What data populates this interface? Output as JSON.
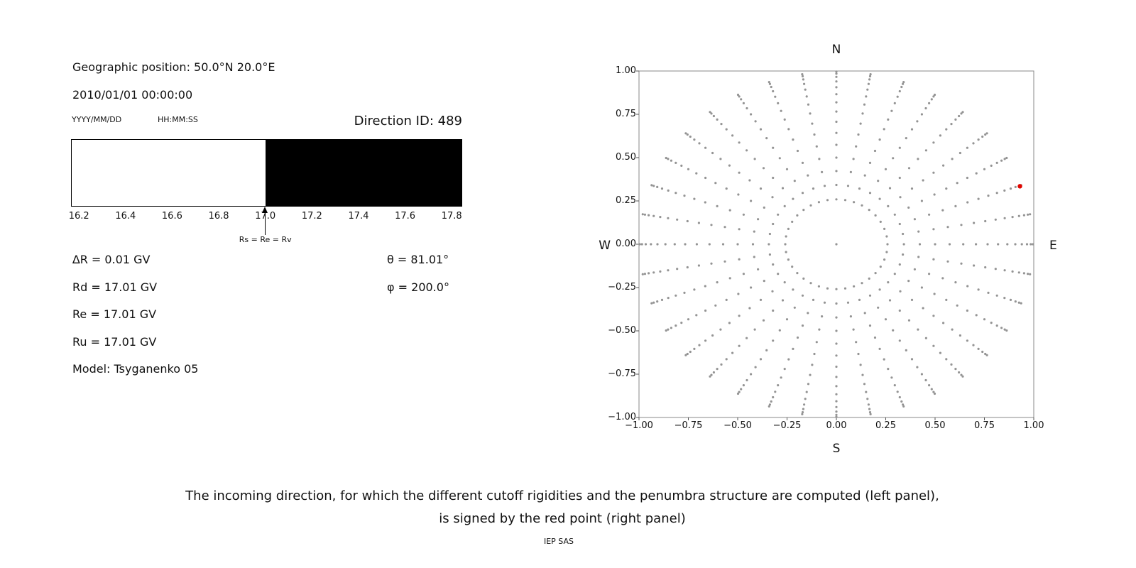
{
  "page": {
    "background": "#ffffff",
    "caption_line1": "The incoming direction, for which the different cutoff rigidities and the penumbra structure are computed (left panel),",
    "caption_line2": "is signed by the red point (right panel)",
    "credit": "IEP SAS"
  },
  "left_panel": {
    "geographic_position": "Geographic position: 50.0°N 20.0°E",
    "datetime": "2010/01/01 00:00:00",
    "date_format": "YYYY/MM/DD",
    "time_format": "HH:MM:SS",
    "direction_id": "Direction ID: 489",
    "parameters": [
      "∆R = 0.01 GV",
      "Rd = 17.01 GV",
      "Re = 17.01 GV",
      "Ru = 17.01 GV",
      "Model: Tsyganenko 05"
    ],
    "angles": [
      "θ = 81.01°",
      "φ = 200.0°"
    ]
  },
  "chart_data": [
    {
      "type": "area",
      "name": "penumbra-structure",
      "unit": "GV",
      "x_range": [
        16.166,
        17.845
      ],
      "tick_values": [
        16.2,
        16.4,
        16.6,
        16.8,
        17.0,
        17.2,
        17.4,
        17.6,
        17.8
      ],
      "tick_labels": [
        "16.2",
        "16.4",
        "16.6",
        "16.8",
        "17.0",
        "17.2",
        "17.4",
        "17.6",
        "17.8"
      ],
      "bands": [
        {
          "from": 16.166,
          "to": 17.0,
          "color": "#ffffff",
          "meaning": "allowed"
        },
        {
          "from": 17.0,
          "to": 17.845,
          "color": "#000000",
          "meaning": "forbidden"
        }
      ],
      "arrow": {
        "value": 17.0,
        "label": "Rs = Re = Rv"
      }
    },
    {
      "type": "scatter",
      "name": "incoming-direction-map",
      "xlim": [
        -1,
        1
      ],
      "ylim": [
        -1,
        1
      ],
      "xtick_values": [
        -1,
        -0.75,
        -0.5,
        -0.25,
        0,
        0.25,
        0.5,
        0.75,
        1
      ],
      "xtick_labels": [
        "−1.00",
        "−0.75",
        "−0.50",
        "−0.25",
        "0.00",
        "0.25",
        "0.50",
        "0.75",
        "1.00"
      ],
      "ytick_values": [
        1,
        0.75,
        0.5,
        0.25,
        0,
        -0.25,
        -0.5,
        -0.75,
        -1
      ],
      "ytick_labels": [
        "1.00",
        "0.75",
        "0.50",
        "0.25",
        "0.00",
        "−0.25",
        "−0.50",
        "−0.75",
        "−1.00"
      ],
      "compass": {
        "top": "N",
        "bottom": "S",
        "left": "W",
        "right": "E"
      },
      "frame_color": "#8a8a8a",
      "gray_points": {
        "color": "#949494",
        "marker_px": 1.6,
        "projection": "r = sin(zenith)",
        "center_point": [
          0,
          0
        ],
        "ring": {
          "zenith_deg": 15,
          "azimuth_start_deg": 0,
          "azimuth_step_deg": 10,
          "azimuth_count": 36
        },
        "spokes": {
          "zenith_start_deg": 20,
          "zenith_end_deg": 85,
          "zenith_step_deg": 5,
          "azimuth_start_deg": 0,
          "azimuth_step_deg": 10,
          "azimuth_count": 36
        }
      },
      "red_point": {
        "x": 0.93,
        "y": 0.335,
        "color": "#e10600",
        "marker_px": 3.2
      }
    }
  ]
}
